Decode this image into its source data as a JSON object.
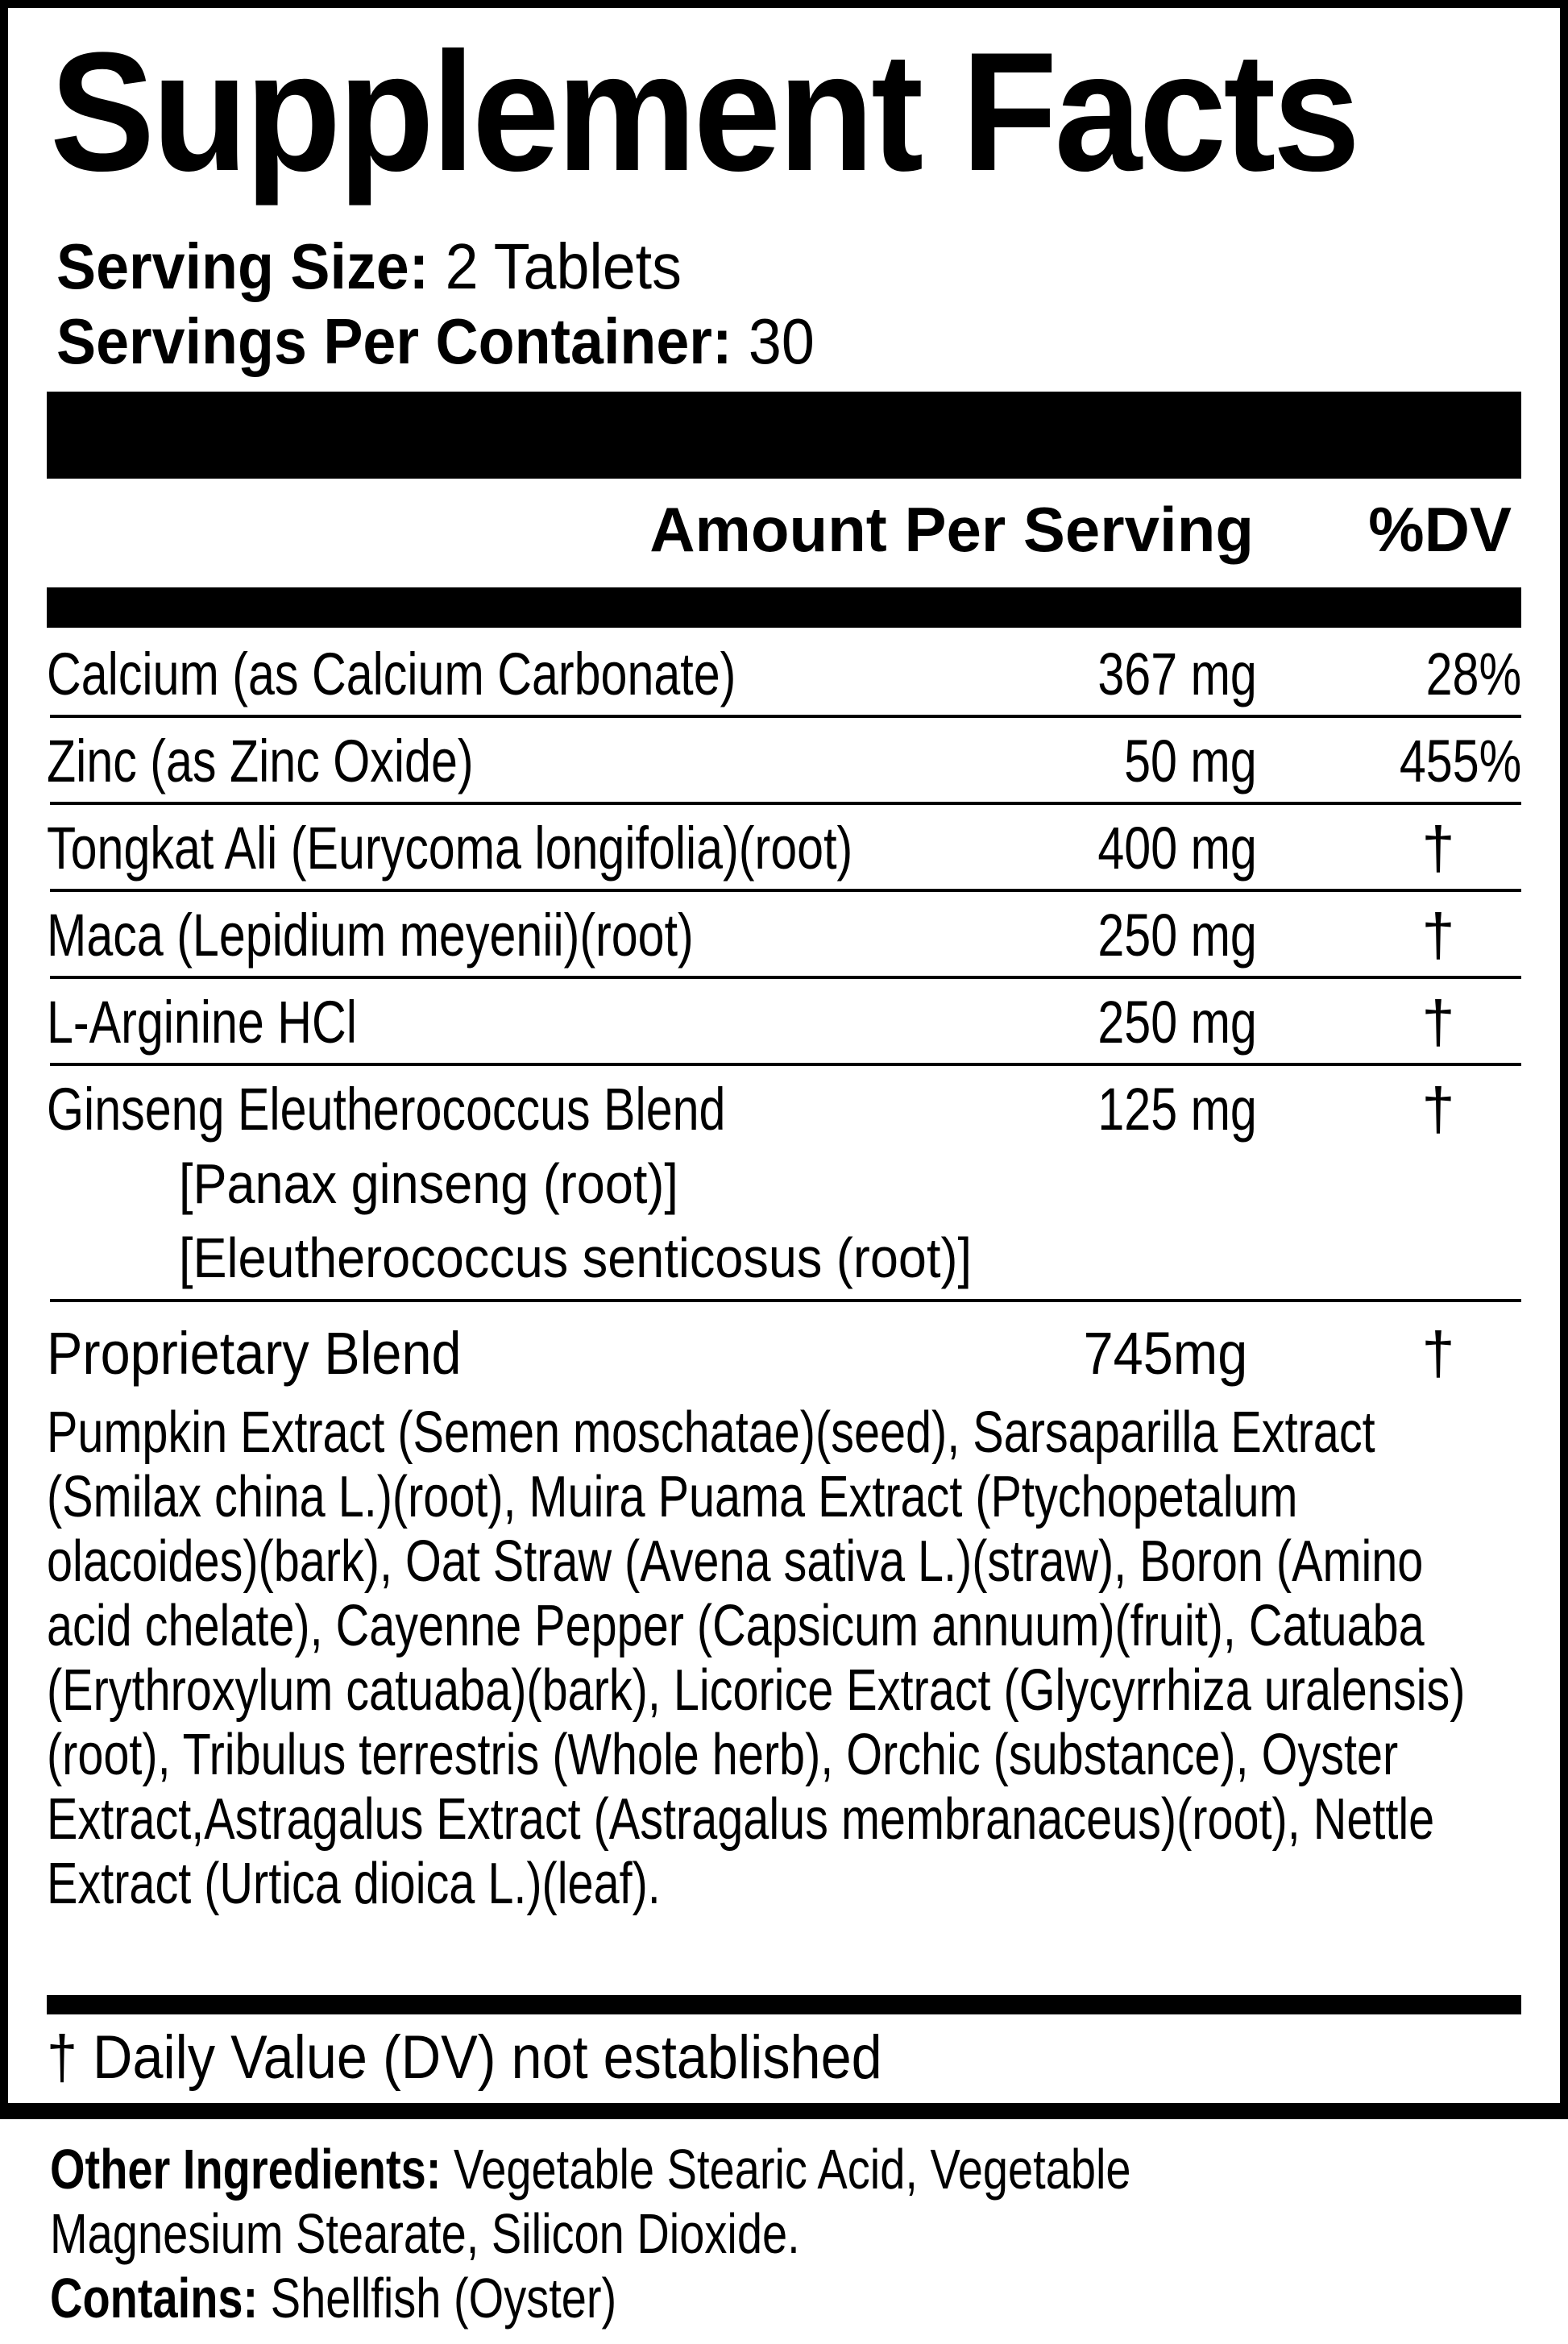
{
  "title": "Supplement Facts",
  "serving": {
    "size_label": "Serving Size:",
    "size_value": "2 Tablets",
    "per_container_label": "Servings Per Container:",
    "per_container_value": "30"
  },
  "header": {
    "amount": "Amount Per Serving",
    "dv": "%DV"
  },
  "rows": [
    {
      "name": "Calcium (as Calcium Carbonate)",
      "amount": "367 mg",
      "dv": "28%"
    },
    {
      "name": "Zinc (as Zinc Oxide)",
      "amount": "50 mg",
      "dv": "455%"
    },
    {
      "name": "Tongkat Ali (Eurycoma longifolia)(root)",
      "amount": "400 mg",
      "dv": "†"
    },
    {
      "name": "Maca (Lepidium meyenii)(root)",
      "amount": "250 mg",
      "dv": "†"
    },
    {
      "name": "L-Arginine HCl",
      "amount": "250 mg",
      "dv": "†"
    },
    {
      "name": "Ginseng Eleutherococcus Blend",
      "amount": "125 mg",
      "dv": "†",
      "sub": [
        "[Panax ginseng (root)]",
        "[Eleutherococcus senticosus (root)]"
      ]
    }
  ],
  "proprietary": {
    "name": "Proprietary Blend",
    "amount": "745mg",
    "dv": "†",
    "ingredients": "Pumpkin Extract (Semen moschatae)(seed), Sarsaparilla Extract (Smilax china L.)(root), Muira Puama Extract (Ptychopetalum olacoides)(bark), Oat Straw (Avena sativa L.)(straw), Boron (Amino acid chelate), Cayenne Pepper (Capsicum annuum)(fruit), Catuaba (Erythroxylum catuaba)(bark), Licorice Extract (Glycyrrhiza uralensis)(root), Tribulus terrestris (Whole herb), Orchic (substance), Oyster Extract,Astragalus Extract (Astragalus membranaceus)(root), Nettle Extract (Urtica dioica L.)(leaf)."
  },
  "footnote": "† Daily Value (DV) not established",
  "other": {
    "label": "Other Ingredients:",
    "value": "Vegetable Stearic Acid, Vegetable Magnesium Stearate, Silicon Dioxide.",
    "contains_label": "Contains:",
    "contains_value": "Shellfish (Oyster)"
  }
}
